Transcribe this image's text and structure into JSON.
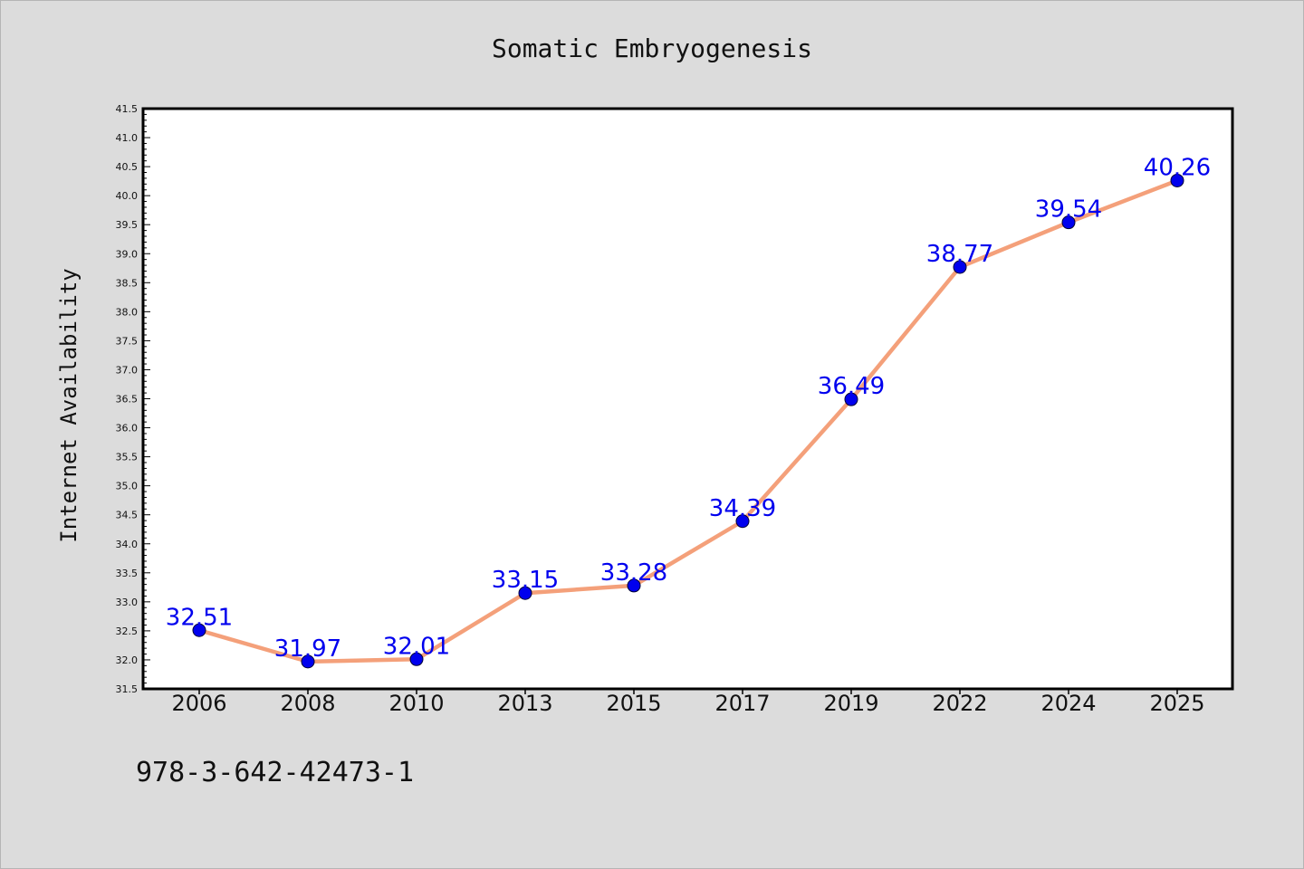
{
  "chart_data": {
    "type": "line",
    "title": "Somatic Embryogenesis",
    "xlabel": "",
    "ylabel": "Internet Availability",
    "categories": [
      "2006",
      "2008",
      "2010",
      "2013",
      "2015",
      "2017",
      "2019",
      "2022",
      "2024",
      "2025"
    ],
    "series": [
      {
        "values": [
          32.51,
          31.97,
          32.01,
          33.15,
          33.28,
          34.39,
          36.49,
          38.77,
          39.54,
          40.26
        ],
        "labels": [
          "32.51",
          "31.97",
          "32.01",
          "33.15",
          "33.28",
          "34.39",
          "36.49",
          "38.77",
          "39.54",
          "40.26"
        ]
      }
    ],
    "ylim": [
      31.5,
      41.5
    ],
    "ytick_labels": [
      "31.5",
      "32.0",
      "32.5",
      "33.0",
      "33.5",
      "34.0",
      "34.5",
      "35.0",
      "35.5",
      "36.0",
      "36.5",
      "37.0",
      "37.5",
      "38.0",
      "38.5",
      "39.0",
      "39.5",
      "40.0",
      "40.5",
      "41.0",
      "41.5"
    ],
    "grid": false,
    "legend": "none",
    "line_color": "#f4a07a",
    "marker_color": "#0000ee",
    "label_color": "#0000ee"
  },
  "footnote": "978-3-642-42473-1"
}
